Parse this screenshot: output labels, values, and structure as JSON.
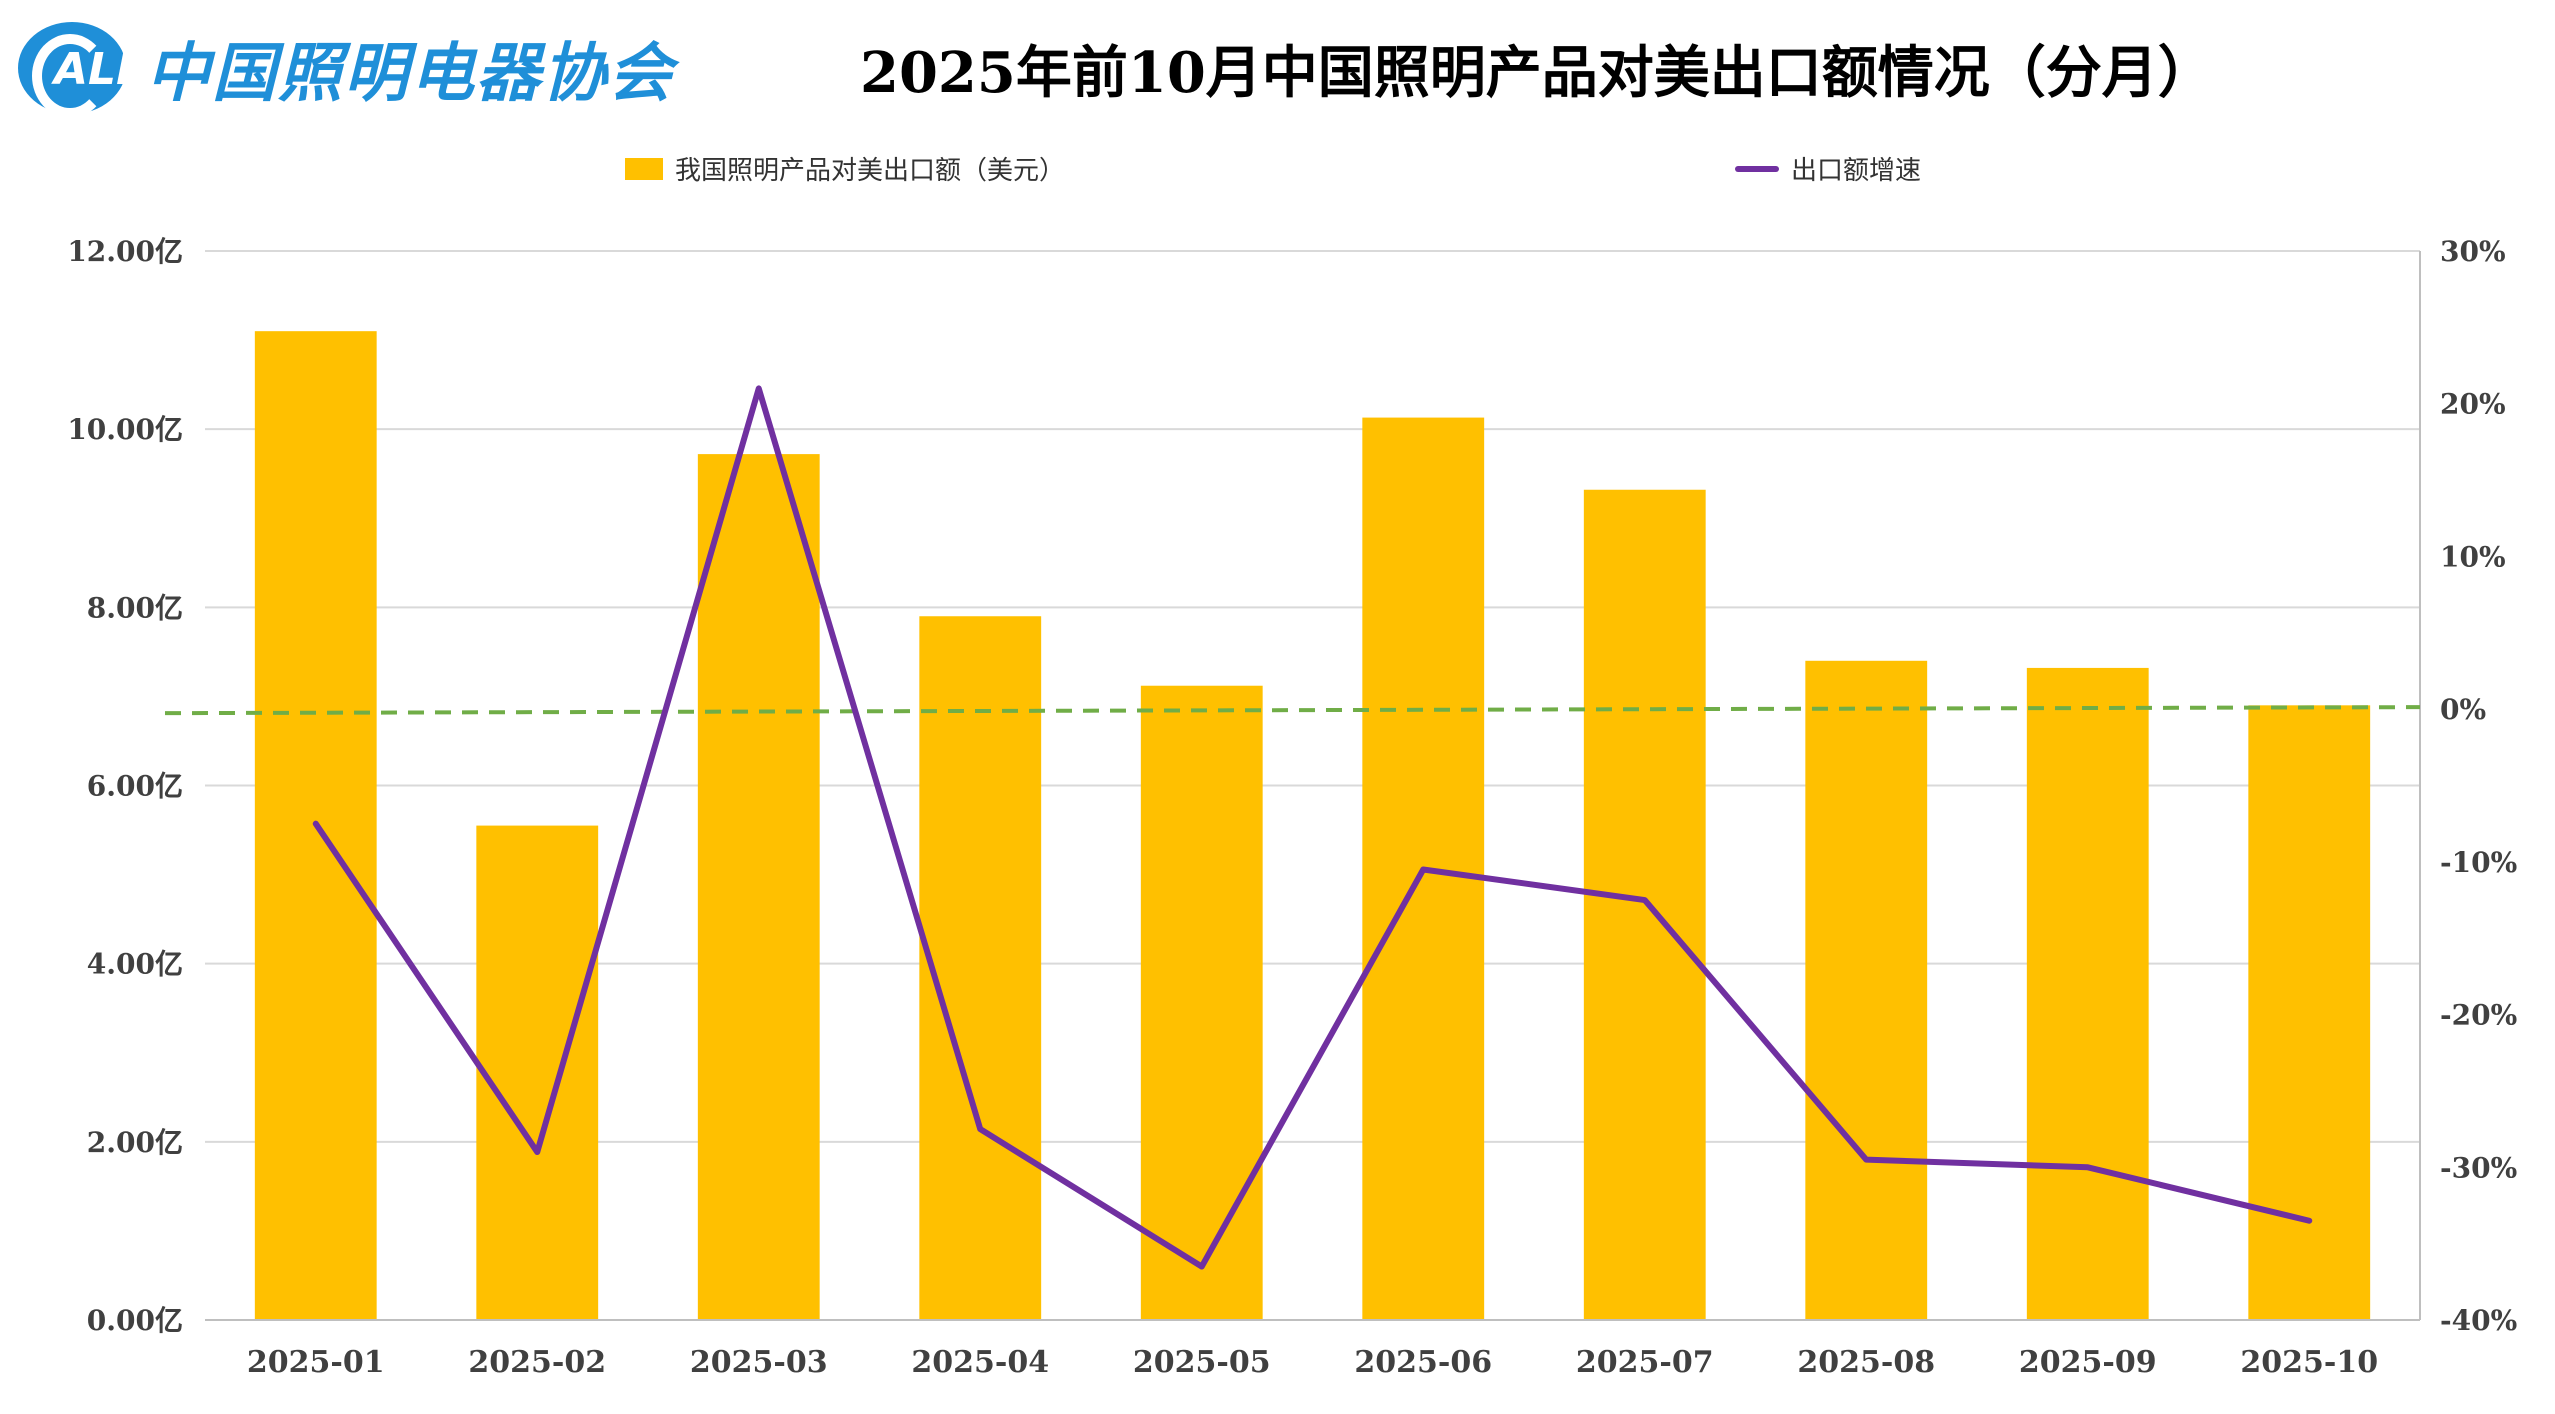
{
  "logo": {
    "badge_text": "ALI",
    "org_name": "中国照明电器协会"
  },
  "chart_data": {
    "type": "bar",
    "title": "2025年前10月中国照明产品对美出口额情况（分月）",
    "categories": [
      "2025-01",
      "2025-02",
      "2025-03",
      "2025-04",
      "2025-05",
      "2025-06",
      "2025-07",
      "2025-08",
      "2025-09",
      "2025-10"
    ],
    "series": [
      {
        "name": "我国照明产品对美出口额（美元）",
        "type": "bar",
        "axis": "left",
        "color": "#ffc000",
        "values": [
          11.1,
          5.55,
          9.72,
          7.9,
          7.12,
          10.13,
          9.32,
          7.4,
          7.32,
          6.9
        ]
      },
      {
        "name": "出口额增速",
        "type": "line",
        "axis": "right",
        "color": "#7030a0",
        "values": [
          -7.5,
          -29.0,
          21.0,
          -27.5,
          -36.5,
          -10.5,
          -12.5,
          -29.5,
          -30.0,
          -33.5
        ]
      }
    ],
    "left_axis": {
      "min": 0,
      "max": 12,
      "ticks": [
        "0.00亿",
        "2.00亿",
        "4.00亿",
        "6.00亿",
        "8.00亿",
        "10.00亿",
        "12.00亿"
      ]
    },
    "right_axis": {
      "min": -40,
      "max": 30,
      "ticks": [
        "-40%",
        "-30%",
        "-20%",
        "-10%",
        "0%",
        "10%",
        "20%",
        "30%"
      ]
    },
    "reference_line": {
      "axis": "right",
      "value": 0,
      "color": "#70ad47",
      "style": "dashed"
    },
    "grid": true,
    "legend_position": "top"
  }
}
